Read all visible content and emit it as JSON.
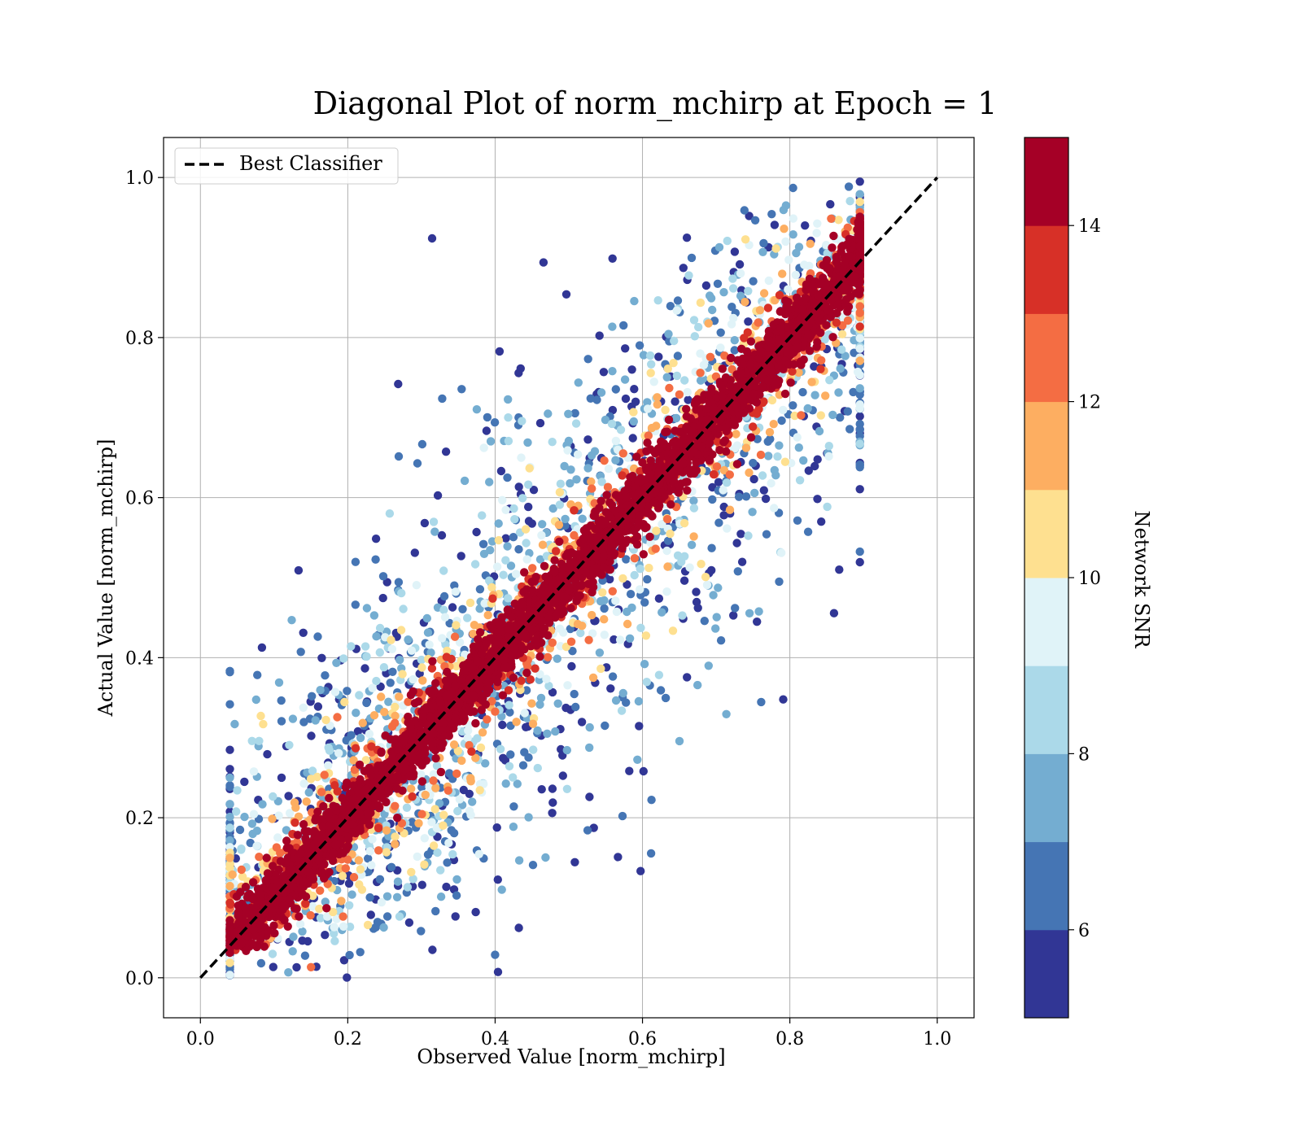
{
  "chart_data": {
    "type": "scatter",
    "title": "Diagonal Plot of norm_mchirp at Epoch = 1",
    "xlabel": "Observed Value [norm_mchirp]",
    "ylabel": "Actual Value [norm_mchirp]",
    "xlim": [
      -0.05,
      1.05
    ],
    "ylim": [
      -0.05,
      1.05
    ],
    "x_ticks": [
      "0.0",
      "0.2",
      "0.4",
      "0.6",
      "0.8",
      "1.0"
    ],
    "y_ticks": [
      "0.0",
      "0.2",
      "0.4",
      "0.6",
      "0.8",
      "1.0"
    ],
    "x_tick_values": [
      0.0,
      0.2,
      0.4,
      0.6,
      0.8,
      1.0
    ],
    "y_tick_values": [
      0.0,
      0.2,
      0.4,
      0.6,
      0.8,
      1.0
    ],
    "grid": true,
    "legend": {
      "placement": "top-left",
      "entries": [
        {
          "label": "Best Classifier",
          "style": "dashed",
          "color": "#000000"
        }
      ]
    },
    "reference_line": {
      "name": "Best Classifier",
      "x": [
        0.0,
        1.0
      ],
      "y": [
        0.0,
        1.0
      ]
    },
    "colorbar": {
      "label": "Network SNR",
      "min": 5,
      "max": 15,
      "boundaries": [
        5,
        6,
        7,
        8,
        9,
        10,
        11,
        12,
        13,
        14,
        15
      ],
      "colors": [
        "#313695",
        "#4575b4",
        "#74add1",
        "#abd9e9",
        "#e0f3f8",
        "#fee090",
        "#fdae61",
        "#f46d43",
        "#d73027",
        "#a50026"
      ],
      "tick_values": [
        6,
        8,
        10,
        12,
        14
      ],
      "tick_labels": [
        "6",
        "8",
        "10",
        "12",
        "14"
      ]
    },
    "scatter_description": {
      "x_range": [
        0.04,
        0.9
      ],
      "y_range": [
        0.0,
        1.0
      ],
      "relation": "points cluster along y = x; high SNR (dark red) tight around diagonal, low SNR (blue) widely scattered"
    }
  }
}
